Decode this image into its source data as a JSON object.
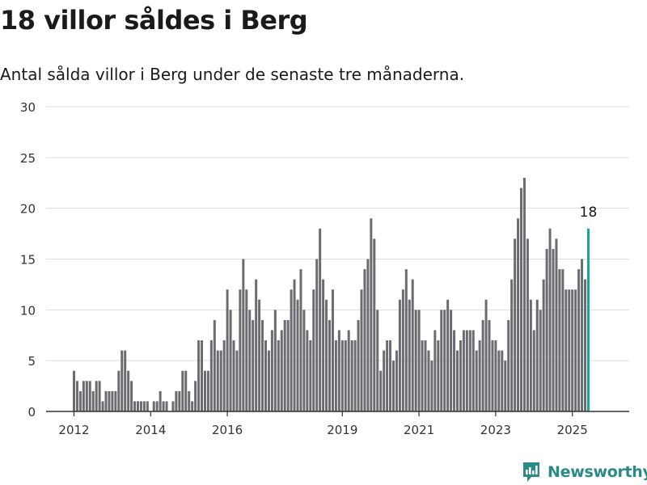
{
  "header": {
    "title": "18 villor såldes i Berg",
    "subtitle": "Antal sålda villor i Berg under de senaste tre månaderna."
  },
  "brand": {
    "name": "Newsworthy",
    "accent": "#2a8a86"
  },
  "colors": {
    "bar": "#6c6b70",
    "highlight": "#12a39a",
    "grid": "#dddddd",
    "axis": "#333333",
    "text": "#333333"
  },
  "chart_data": {
    "type": "bar",
    "start": "2012-01",
    "x_ticks": [
      "2012",
      "2014",
      "2016",
      "2019",
      "2021",
      "2023",
      "2025"
    ],
    "ylim": [
      0,
      30
    ],
    "y_ticks": [
      0,
      5,
      10,
      15,
      20,
      25,
      30
    ],
    "grid": true,
    "values": [
      4,
      3,
      2,
      3,
      3,
      3,
      2,
      3,
      3,
      1,
      2,
      2,
      2,
      2,
      4,
      6,
      6,
      4,
      3,
      1,
      1,
      1,
      1,
      1,
      0,
      1,
      1,
      2,
      1,
      1,
      0,
      1,
      2,
      2,
      4,
      4,
      2,
      1,
      3,
      7,
      7,
      4,
      4,
      7,
      9,
      6,
      6,
      7,
      12,
      10,
      7,
      6,
      12,
      15,
      12,
      10,
      9,
      13,
      11,
      9,
      7,
      6,
      8,
      10,
      7,
      8,
      9,
      9,
      12,
      13,
      11,
      14,
      10,
      8,
      7,
      12,
      15,
      18,
      13,
      11,
      9,
      12,
      7,
      8,
      7,
      7,
      8,
      7,
      7,
      9,
      12,
      14,
      15,
      19,
      17,
      10,
      4,
      6,
      7,
      7,
      5,
      6,
      11,
      12,
      14,
      11,
      13,
      10,
      10,
      7,
      7,
      6,
      5,
      8,
      7,
      10,
      10,
      11,
      10,
      8,
      6,
      7,
      8,
      8,
      8,
      8,
      6,
      7,
      9,
      11,
      9,
      7,
      7,
      6,
      6,
      5,
      9,
      13,
      17,
      19,
      22,
      23,
      17,
      11,
      8,
      11,
      10,
      13,
      16,
      18,
      16,
      17,
      14,
      14,
      12,
      12,
      12,
      12,
      14,
      15,
      13,
      18
    ],
    "annotation": "18"
  }
}
